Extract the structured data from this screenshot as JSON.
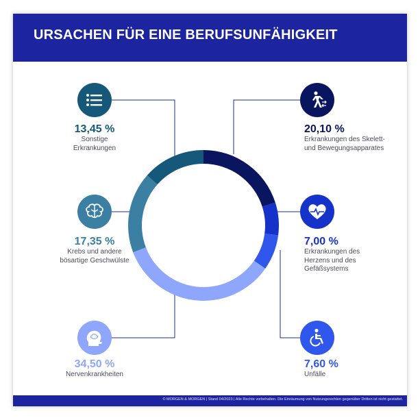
{
  "header": {
    "title": "URSACHEN FÜR EINE BERUFSUNFÄHIGKEIT"
  },
  "footer": {
    "text": "© MORGEN & MORGEN | Stand 04/2023 | Alle Rechte vorbehalten. Die Einräumung von Nutzungsrechten gegenüber Dritten ist nicht gestattet."
  },
  "colors": {
    "header_bg": "#1d24a0",
    "skelett": "#0a1560",
    "herz": "#1532c9",
    "unfaelle": "#2f57ec",
    "nerven": "#8ea6fb",
    "krebs": "#3b7fa3",
    "sonstige": "#15587a",
    "leader_line": "#1e2f7a"
  },
  "chart_data": {
    "type": "pie",
    "title": "URSACHEN FÜR EINE BERUFSUNFÄHIGKEIT",
    "unit": "%",
    "slices": [
      {
        "key": "skelett",
        "value": 20.1,
        "pct_label": "20,10 %",
        "label": "Erkrankungen des Skelett-\nund Bewegungsapparates",
        "icon": "walking-person-icon"
      },
      {
        "key": "herz",
        "value": 7.0,
        "pct_label": "7,00 %",
        "label": "Erkrankungen des\nHerzens und des\nGefäßsystems",
        "icon": "heart-pulse-icon"
      },
      {
        "key": "unfaelle",
        "value": 7.6,
        "pct_label": "7,60 %",
        "label": "Unfälle",
        "icon": "wheelchair-icon"
      },
      {
        "key": "nerven",
        "value": 34.5,
        "pct_label": "34,50 %",
        "label": "Nervenkrankheiten",
        "icon": "head-brain-icon"
      },
      {
        "key": "krebs",
        "value": 17.35,
        "pct_label": "17,35 %",
        "label": "Krebs und andere\nbösartige Geschwülste",
        "icon": "brain-icon"
      },
      {
        "key": "sonstige",
        "value": 13.45,
        "pct_label": "13,45 %",
        "label": "Sonstige\nErkrankungen",
        "icon": "list-icon"
      }
    ]
  }
}
